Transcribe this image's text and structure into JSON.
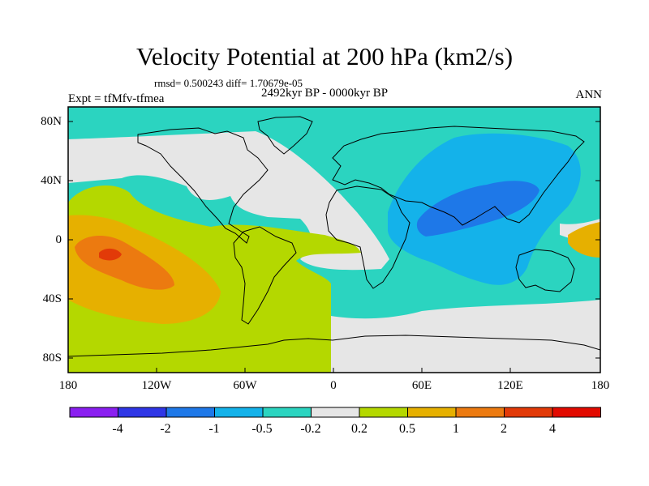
{
  "title": "Velocity Potential at 200 hPa (km2/s)",
  "stats_text": "rmsd= 0.500243 diff= 1.70679e-05",
  "period": "2492kyr BP - 0000kyr BP",
  "experiment": "Expt = tfMfv-tfmea",
  "season": "ANN",
  "lat_labels": [
    "80N",
    "40N",
    "0",
    "40S",
    "80S"
  ],
  "lon_labels": [
    "180",
    "120W",
    "60W",
    "0",
    "60E",
    "120E",
    "180"
  ],
  "colorbar": {
    "colors": [
      "#8a1ff0",
      "#2f36e6",
      "#1e78e8",
      "#14b2ea",
      "#2bd4c0",
      "#e6e6e6",
      "#b4d800",
      "#e6b000",
      "#ec7a10",
      "#e23a08",
      "#e20a00"
    ],
    "labels": [
      "-4",
      "-2",
      "-1",
      "-0.5",
      "-0.2",
      "0.2",
      "0.5",
      "1",
      "2",
      "4"
    ]
  },
  "field_colors": {
    "background": "#2bd4c0",
    "neutral": "#e6e6e6",
    "weak_pos": "#b4d800",
    "mid_pos": "#e6b000",
    "strong_pos": "#ec7a10",
    "max_pos": "#e23a08",
    "weak_neg": "#14b2ea",
    "mid_neg": "#1e78e8"
  }
}
